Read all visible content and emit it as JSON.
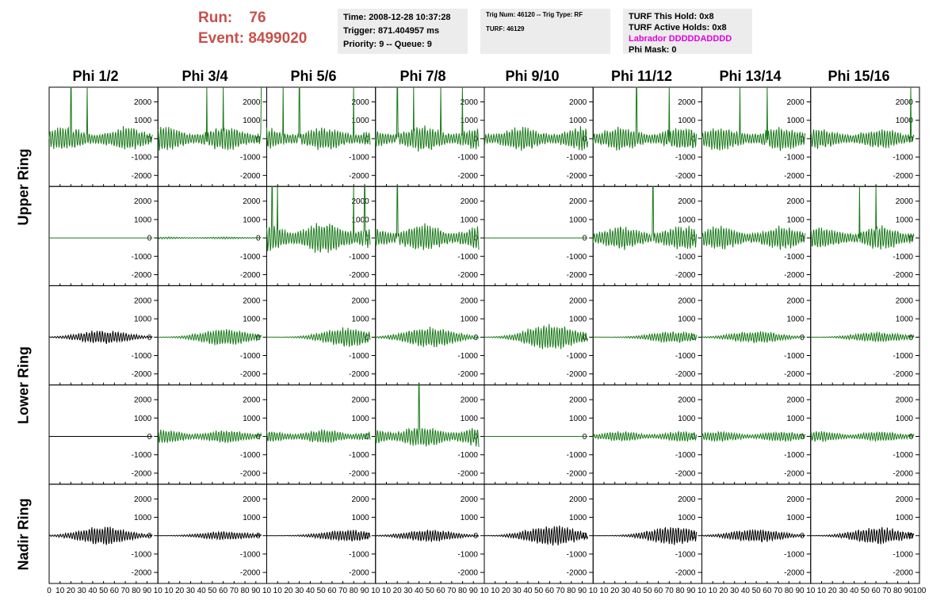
{
  "header": {
    "run_label": "Run:",
    "run_value": "76",
    "event_label": "Event:",
    "event_value": "8499020",
    "time": "Time: 2008-12-28 10:37:28",
    "trigger": "Trigger: 871.404957 ms",
    "priority": "Priority: 9 -- Queue: 9",
    "trig_num": "Trig Num: 46120 -- Trig Type: RF",
    "turf": "TURF: 46129",
    "turf_this_hold": "TURF This Hold: 0x8",
    "turf_active_holds": "TURF Active Holds: 0x8",
    "labrador": "Labrador DDDDDADDDD",
    "phi_mask": "Phi Mask: 0"
  },
  "colors": {
    "header_red": "#c8504b",
    "labrador": "#e000e0",
    "trace_green": "#1a7a1a",
    "trace_black": "#000000",
    "panel_bg": "#ececec"
  },
  "columns": [
    "Phi 1/2",
    "Phi 3/4",
    "Phi 5/6",
    "Phi 7/8",
    "Phi 9/10",
    "Phi 11/12",
    "Phi 13/14",
    "Phi 15/16"
  ],
  "rows": [
    "Upper Ring",
    "Lower Ring",
    "Nadir Ring"
  ],
  "chart_data": {
    "type": "line",
    "ylim": [
      -2600,
      2800
    ],
    "xlim": [
      0,
      100
    ],
    "yticks": [
      "2000",
      "1000",
      "0",
      "-1000",
      "-2000"
    ],
    "xticks_main": [
      "0",
      "10",
      "20",
      "30",
      "40",
      "50",
      "60",
      "70",
      "80",
      "90",
      "100"
    ],
    "xticks_compact": [
      "0",
      "10",
      "20",
      "30",
      "40",
      "50",
      "60",
      "70",
      "80",
      "90",
      "10"
    ],
    "note_ylabels": "Each panel has y tick labels 2000, 1000, 0, -1000, -2000 drawn to the left of the panel; first column labels at the outer left.",
    "panels": [
      [
        {
          "color": "green",
          "amp": 700,
          "spikes": [
            20,
            35,
            96
          ]
        },
        {
          "color": "green",
          "amp": 750,
          "spikes": [
            45,
            60,
            95
          ]
        },
        {
          "color": "green",
          "amp": 700,
          "spikes": [
            15,
            30,
            80
          ]
        },
        {
          "color": "green",
          "amp": 750,
          "spikes": [
            20,
            35,
            60,
            80
          ]
        },
        {
          "color": "green",
          "amp": 700,
          "spikes": []
        },
        {
          "color": "green",
          "amp": 700,
          "spikes": [
            40,
            70
          ]
        },
        {
          "color": "green",
          "amp": 700,
          "spikes": [
            35,
            60,
            98
          ]
        },
        {
          "color": "green",
          "amp": 600,
          "spikes": [
            92
          ]
        }
      ],
      [
        {
          "color": "green",
          "amp": 0,
          "spikes": []
        },
        {
          "color": "green",
          "amp": 60,
          "spikes": []
        },
        {
          "color": "green",
          "amp": 950,
          "spikes": [
            5,
            10,
            80,
            90
          ]
        },
        {
          "color": "green",
          "amp": 800,
          "spikes": [
            20
          ]
        },
        {
          "color": "green",
          "amp": 0,
          "spikes": []
        },
        {
          "color": "green",
          "amp": 700,
          "spikes": [
            55
          ]
        },
        {
          "color": "green",
          "amp": 700,
          "spikes": []
        },
        {
          "color": "green",
          "amp": 700,
          "spikes": [
            45,
            60
          ]
        }
      ],
      [
        {
          "color": "black",
          "amp": 400,
          "spikes": []
        },
        {
          "color": "green",
          "amp": 500,
          "spikes": []
        },
        {
          "color": "green",
          "amp": 550,
          "spikes": []
        },
        {
          "color": "green",
          "amp": 600,
          "spikes": []
        },
        {
          "color": "green",
          "amp": 800,
          "spikes": []
        },
        {
          "color": "green",
          "amp": 350,
          "spikes": []
        },
        {
          "color": "green",
          "amp": 350,
          "spikes": []
        },
        {
          "color": "green",
          "amp": 300,
          "spikes": []
        }
      ],
      [
        {
          "color": "black",
          "amp": 0,
          "spikes": []
        },
        {
          "color": "green",
          "amp": 400,
          "spikes": []
        },
        {
          "color": "green",
          "amp": 400,
          "spikes": []
        },
        {
          "color": "green",
          "amp": 650,
          "spikes": [
            40
          ]
        },
        {
          "color": "green",
          "amp": 0,
          "spikes": []
        },
        {
          "color": "green",
          "amp": 300,
          "spikes": []
        },
        {
          "color": "green",
          "amp": 300,
          "spikes": []
        },
        {
          "color": "green",
          "amp": 300,
          "spikes": []
        }
      ],
      [
        {
          "color": "black",
          "amp": 550,
          "spikes": []
        },
        {
          "color": "black",
          "amp": 250,
          "spikes": []
        },
        {
          "color": "black",
          "amp": 350,
          "spikes": []
        },
        {
          "color": "black",
          "amp": 350,
          "spikes": []
        },
        {
          "color": "black",
          "amp": 600,
          "spikes": []
        },
        {
          "color": "black",
          "amp": 550,
          "spikes": []
        },
        {
          "color": "black",
          "amp": 400,
          "spikes": []
        },
        {
          "color": "black",
          "amp": 500,
          "spikes": []
        }
      ]
    ]
  }
}
